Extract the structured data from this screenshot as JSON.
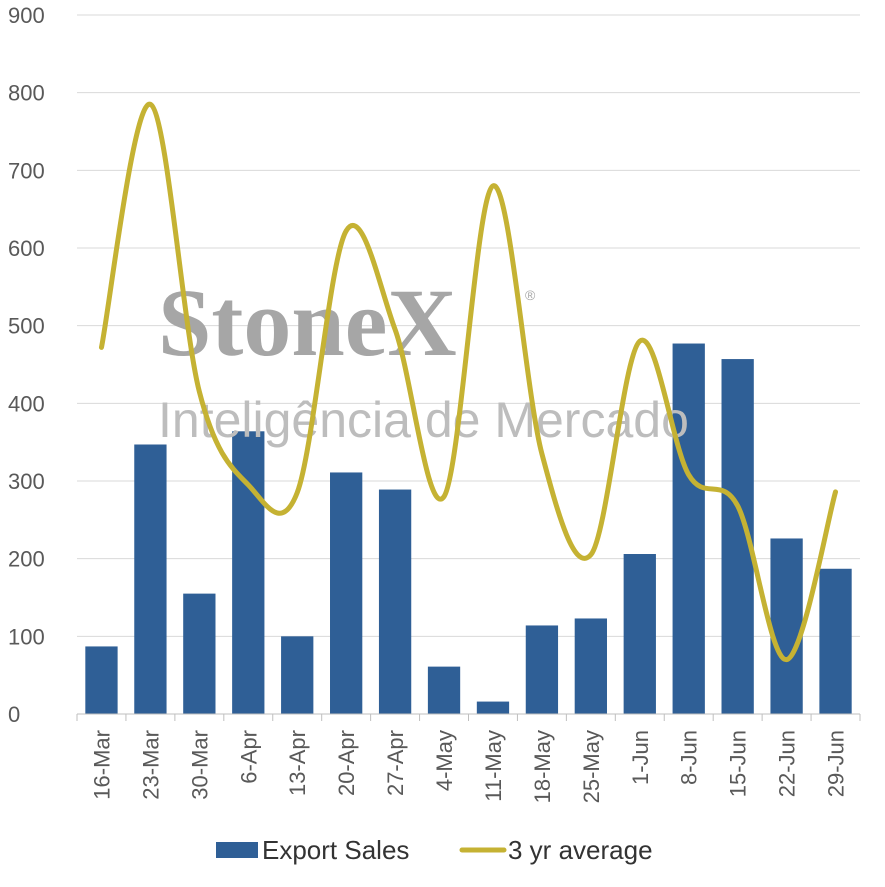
{
  "watermark": {
    "brand": "StoneX",
    "registered": "®",
    "subtitle": "Inteligência de Mercado"
  },
  "chart_data": {
    "type": "bar",
    "categories": [
      "16-Mar",
      "23-Mar",
      "30-Mar",
      "6-Apr",
      "13-Apr",
      "20-Apr",
      "27-Apr",
      "4-May",
      "11-May",
      "18-May",
      "25-May",
      "1-Jun",
      "8-Jun",
      "15-Jun",
      "22-Jun",
      "29-Jun"
    ],
    "series": [
      {
        "name": "Export Sales",
        "type": "bar",
        "color": "#2f5f96",
        "values": [
          87,
          347,
          155,
          364,
          100,
          311,
          289,
          61,
          16,
          114,
          123,
          206,
          477,
          457,
          226,
          187
        ]
      },
      {
        "name": "3 yr average",
        "type": "line",
        "color": "#c5b233",
        "values": [
          472,
          785,
          415,
          295,
          285,
          622,
          495,
          280,
          680,
          335,
          205,
          480,
          308,
          268,
          70,
          286
        ]
      }
    ],
    "yticks": [
      "0",
      "100",
      "200",
      "300",
      "400",
      "500",
      "600",
      "700",
      "800",
      "900"
    ],
    "ylim": [
      0,
      900
    ],
    "grid": true,
    "legend_position": "bottom"
  }
}
